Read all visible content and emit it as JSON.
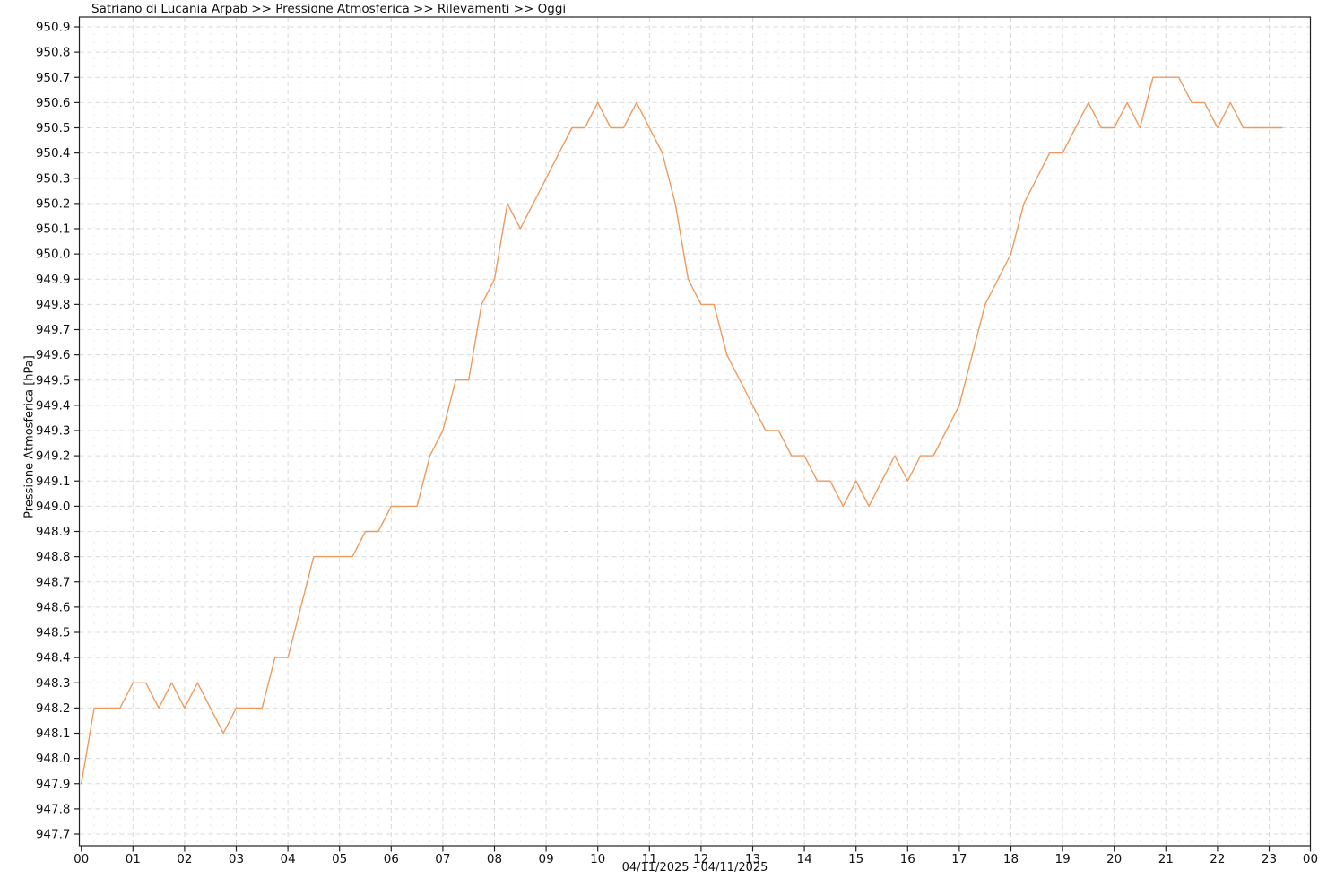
{
  "header": {
    "title": "Satriano di Lucania Arpab >> Pressione Atmosferica >> Rilevamenti >> Oggi"
  },
  "chart_data": {
    "type": "line",
    "title": "Satriano di Lucania Arpab >> Pressione Atmosferica >> Rilevamenti >> Oggi",
    "ylabel": "Pressione Atmosferica [hPa]",
    "xlabel": "04/11/2025 - 04/11/2025",
    "ylim": [
      947.7,
      950.9
    ],
    "y_tick_step": 0.1,
    "y_tick_labels": [
      "950.9",
      "950.8",
      "950.7",
      "950.6",
      "950.5",
      "950.4",
      "950.3",
      "950.2",
      "950.1",
      "950.0",
      "949.9",
      "949.8",
      "949.7",
      "949.6",
      "949.5",
      "949.4",
      "949.3",
      "949.2",
      "949.1",
      "949.0",
      "948.9",
      "948.8",
      "948.7",
      "948.6",
      "948.5",
      "948.4",
      "948.3",
      "948.2",
      "948.1",
      "948.0",
      "947.9",
      "947.8",
      "947.7"
    ],
    "x_tick_labels": [
      "00",
      "01",
      "02",
      "03",
      "04",
      "05",
      "06",
      "07",
      "08",
      "09",
      "10",
      "11",
      "12",
      "13",
      "14",
      "15",
      "16",
      "17",
      "18",
      "19",
      "20",
      "21",
      "22",
      "23",
      "00"
    ],
    "grid": true,
    "legend_position": "none",
    "line_color": "#EF9A5C",
    "sample_interval_minutes": 15,
    "series": [
      {
        "name": "Pressione Atmosferica",
        "unit": "hPa",
        "times": [
          "00:00",
          "00:15",
          "00:30",
          "00:45",
          "01:00",
          "01:15",
          "01:30",
          "01:45",
          "02:00",
          "02:15",
          "02:30",
          "02:45",
          "03:00",
          "03:15",
          "03:30",
          "03:45",
          "04:00",
          "04:15",
          "04:30",
          "04:45",
          "05:00",
          "05:15",
          "05:30",
          "05:45",
          "06:00",
          "06:15",
          "06:30",
          "06:45",
          "07:00",
          "07:15",
          "07:30",
          "07:45",
          "08:00",
          "08:15",
          "08:30",
          "08:45",
          "09:00",
          "09:15",
          "09:30",
          "09:45",
          "10:00",
          "10:15",
          "10:30",
          "10:45",
          "11:00",
          "11:15",
          "11:30",
          "11:45",
          "12:00",
          "12:15",
          "12:30",
          "12:45",
          "13:00",
          "13:15",
          "13:30",
          "13:45",
          "14:00",
          "14:15",
          "14:30",
          "14:45",
          "15:00",
          "15:15",
          "15:30",
          "15:45",
          "16:00",
          "16:15",
          "16:30",
          "16:45",
          "17:00",
          "17:15",
          "17:30",
          "17:45",
          "18:00",
          "18:15",
          "18:30",
          "18:45",
          "19:00",
          "19:15",
          "19:30",
          "19:45",
          "20:00",
          "20:15",
          "20:30",
          "20:45",
          "21:00",
          "21:15",
          "21:30",
          "21:45",
          "22:00",
          "22:15",
          "22:30",
          "22:45",
          "23:00",
          "23:15"
        ],
        "values": [
          947.9,
          948.2,
          948.2,
          948.2,
          948.3,
          948.3,
          948.2,
          948.3,
          948.2,
          948.3,
          948.2,
          948.1,
          948.2,
          948.2,
          948.2,
          948.4,
          948.4,
          948.6,
          948.8,
          948.8,
          948.8,
          948.8,
          948.9,
          948.9,
          949.0,
          949.0,
          949.0,
          949.2,
          949.3,
          949.5,
          949.5,
          949.8,
          949.9,
          950.2,
          950.1,
          950.2,
          950.3,
          950.4,
          950.5,
          950.5,
          950.6,
          950.5,
          950.5,
          950.6,
          950.5,
          950.4,
          950.2,
          949.9,
          949.8,
          949.8,
          949.6,
          949.5,
          949.4,
          949.3,
          949.3,
          949.2,
          949.2,
          949.1,
          949.1,
          949.0,
          949.1,
          949.0,
          949.1,
          949.2,
          949.1,
          949.2,
          949.2,
          949.3,
          949.4,
          949.6,
          949.8,
          949.9,
          950.0,
          950.2,
          950.3,
          950.4,
          950.4,
          950.5,
          950.6,
          950.5,
          950.5,
          950.6,
          950.5,
          950.7,
          950.7,
          950.7,
          950.6,
          950.6,
          950.5,
          950.6,
          950.5,
          950.5,
          950.5,
          950.5
        ]
      }
    ],
    "colors": {
      "line": "#EF9A5C",
      "grid_major": "#d9d9d9",
      "grid_minor": "#ececec",
      "axis": "#222222",
      "text": "#111111",
      "background": "#ffffff"
    }
  }
}
